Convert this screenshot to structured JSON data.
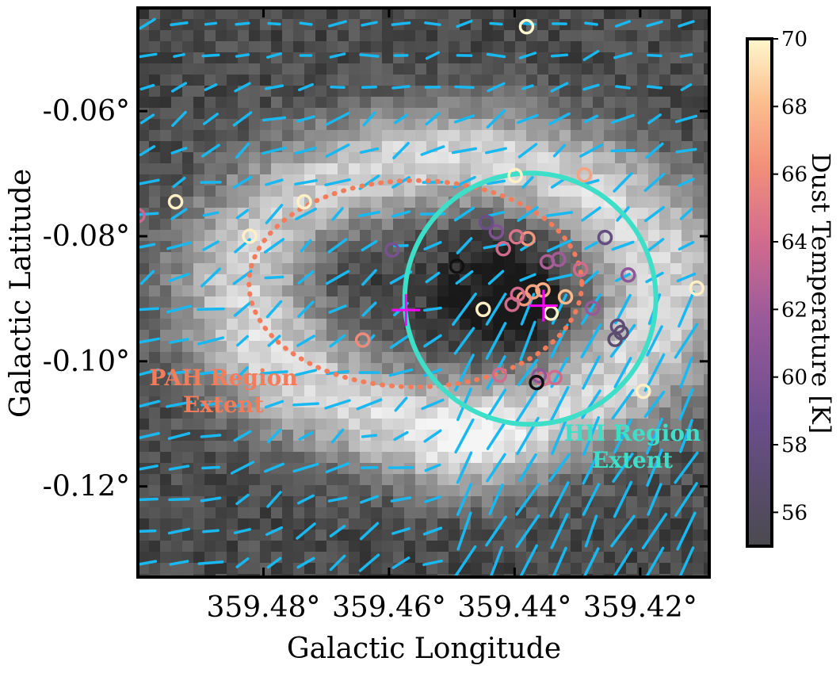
{
  "chart_data": {
    "type": "scatter",
    "xlabel": "Galactic Longitude",
    "ylabel": "Galactic Latitude",
    "xlim": [
      359.5,
      359.409
    ],
    "ylim": [
      -0.1345,
      -0.0435
    ],
    "x_ticks": [
      359.48,
      359.46,
      359.44,
      359.42
    ],
    "x_tick_labels": [
      "359.48°",
      "359.46°",
      "359.44°",
      "359.42°"
    ],
    "y_ticks": [
      -0.06,
      -0.08,
      -0.1,
      -0.12
    ],
    "y_tick_labels": [
      "-0.06°",
      "-0.08°",
      "-0.10°",
      "-0.12°"
    ],
    "background": "grayscale intensity map",
    "colorbar": {
      "label": "Dust Temperature [K]",
      "range": [
        55,
        70
      ],
      "ticks": [
        "56",
        "58",
        "60",
        "62",
        "64",
        "66",
        "68",
        "70"
      ],
      "colormap": "magma"
    },
    "regions": [
      {
        "label": "PAH Region Extent",
        "shape": "ellipse",
        "style": "dotted",
        "color": "#f47c5a",
        "center": [
          359.4558,
          -0.0876
        ],
        "semi_axes_deg": [
          0.0265,
          0.0165
        ]
      },
      {
        "label": "HII Region Extent",
        "shape": "circle",
        "style": "solid",
        "color": "#3ddfc8",
        "center": [
          359.4375,
          -0.09
        ],
        "radius_deg": 0.02
      }
    ],
    "annotations": [
      {
        "text_lines": [
          "PAH Region",
          "Extent"
        ],
        "color": "#f47c5a"
      },
      {
        "text_lines": [
          "HII Region",
          "Extent"
        ],
        "color": "#3ddfc8"
      }
    ],
    "markers": [
      {
        "type": "cross",
        "l": 359.4573,
        "b": -0.0918,
        "color": "#ff00ff"
      },
      {
        "type": "cross",
        "l": 359.4354,
        "b": -0.0911,
        "color": "#ff00ff"
      }
    ],
    "points": [
      {
        "l": 359.4381,
        "b": -0.0465,
        "T": 70.0
      },
      {
        "l": 359.494,
        "b": -0.0745,
        "T": 69.7
      },
      {
        "l": 359.4735,
        "b": -0.0745,
        "T": 69.7
      },
      {
        "l": 359.4822,
        "b": -0.08,
        "T": 69.7
      },
      {
        "l": 359.4399,
        "b": -0.0703,
        "T": 69.7
      },
      {
        "l": 359.4289,
        "b": -0.0702,
        "T": 67.0
      },
      {
        "l": 359.411,
        "b": -0.0883,
        "T": 69.7
      },
      {
        "l": 359.4195,
        "b": -0.1048,
        "T": 69.7
      },
      {
        "l": 359.445,
        "b": -0.0917,
        "T": 69.7
      },
      {
        "l": 359.4342,
        "b": -0.0923,
        "T": 69.7
      },
      {
        "l": 359.4319,
        "b": -0.0897,
        "T": 68.0
      },
      {
        "l": 359.4355,
        "b": -0.0886,
        "T": 67.5
      },
      {
        "l": 359.4371,
        "b": -0.0889,
        "T": 67.0
      },
      {
        "l": 359.4385,
        "b": -0.09,
        "T": 66.5
      },
      {
        "l": 359.4379,
        "b": -0.0804,
        "T": 66.5
      },
      {
        "l": 359.4642,
        "b": -0.0966,
        "T": 66.0
      },
      {
        "l": 359.4397,
        "b": -0.0801,
        "T": 64.5
      },
      {
        "l": 359.4395,
        "b": -0.0893,
        "T": 64.0
      },
      {
        "l": 359.4404,
        "b": -0.0909,
        "T": 64.0
      },
      {
        "l": 359.4418,
        "b": -0.082,
        "T": 64.0
      },
      {
        "l": 359.4295,
        "b": -0.0853,
        "T": 64.0
      },
      {
        "l": 359.4336,
        "b": -0.1026,
        "T": 64.0
      },
      {
        "l": 359.4424,
        "b": -0.1022,
        "T": 64.0
      },
      {
        "l": 359.4355,
        "b": -0.1028,
        "T": 64.5
      },
      {
        "l": 359.5,
        "b": -0.0767,
        "T": 63.5
      },
      {
        "l": 359.4348,
        "b": -0.0841,
        "T": 62.5
      },
      {
        "l": 359.433,
        "b": -0.0837,
        "T": 62.0
      },
      {
        "l": 359.4276,
        "b": -0.0915,
        "T": 61.5
      },
      {
        "l": 359.4219,
        "b": -0.0862,
        "T": 61.0
      },
      {
        "l": 359.4361,
        "b": -0.1023,
        "T": 61.0
      },
      {
        "l": 359.4429,
        "b": -0.0793,
        "T": 60.0
      },
      {
        "l": 359.4595,
        "b": -0.0822,
        "T": 59.5
      },
      {
        "l": 359.4445,
        "b": -0.0778,
        "T": 58.5
      },
      {
        "l": 359.4256,
        "b": -0.0802,
        "T": 58.0
      },
      {
        "l": 359.4236,
        "b": -0.0944,
        "T": 57.5
      },
      {
        "l": 359.423,
        "b": -0.0954,
        "T": 57.0
      },
      {
        "l": 359.424,
        "b": -0.0965,
        "T": 57.0
      },
      {
        "l": 359.4492,
        "b": -0.0848,
        "T": 55.0
      },
      {
        "l": 359.4365,
        "b": -0.1034,
        "T": 55.0
      }
    ]
  }
}
